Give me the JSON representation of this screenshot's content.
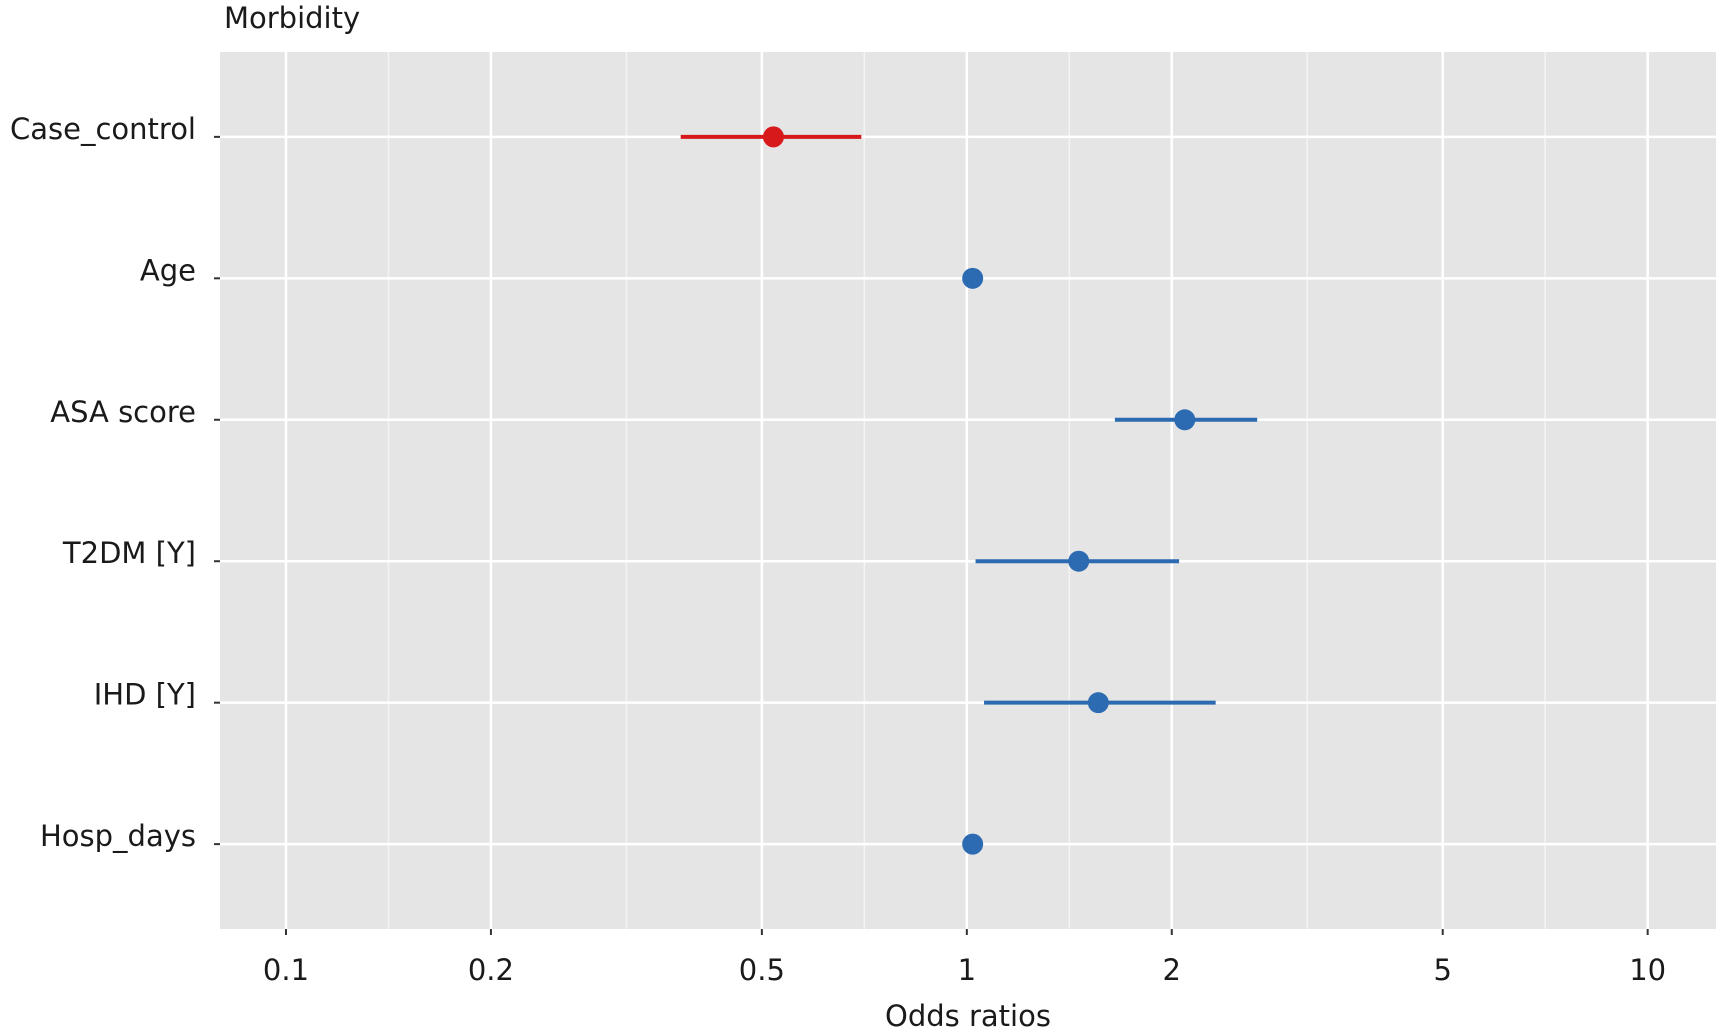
{
  "chart_data": {
    "type": "forest",
    "title": "Morbidity",
    "x_label": "Odds ratios",
    "categories": [
      "Case_control",
      "Age",
      "ASA score",
      "T2DM [Y]",
      "IHD [Y]",
      "Hosp_days"
    ],
    "values": [
      0.52,
      1.02,
      2.09,
      1.46,
      1.56,
      1.02
    ],
    "lower": [
      0.38,
      null,
      1.65,
      1.03,
      1.06,
      null
    ],
    "upper": [
      0.7,
      null,
      2.67,
      2.05,
      2.32,
      null
    ],
    "colors": [
      "#d7191c",
      "#2c6bb2",
      "#2c6bb2",
      "#2c6bb2",
      "#2c6bb2",
      "#2c6bb2"
    ],
    "xlim": [
      0.08,
      12.6
    ],
    "xticks": [
      0.1,
      0.2,
      0.5,
      1,
      2,
      5,
      10
    ],
    "log_x": true,
    "grid": true
  }
}
